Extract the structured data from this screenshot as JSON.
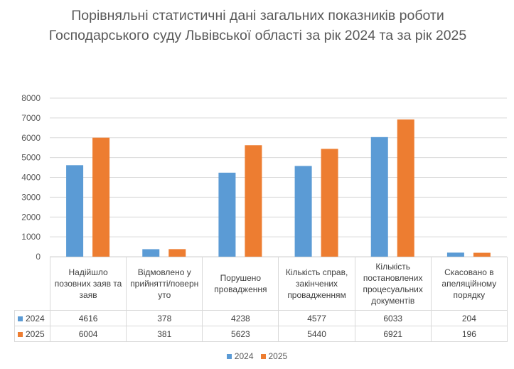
{
  "chart_data": {
    "type": "bar",
    "title": "Порівняльні статистичні дані загальних показників роботи Господарського суду Львівської області за рік 2024 та за рік 2025",
    "categories": [
      "Надійшло позовних заяв та заяв",
      "Відмовлено у прийнятті/поверн уто",
      "Порушено провадження",
      "Кількість справ, закінчених провадженням",
      "Кількість постановлених процесуальних документів",
      "Скасовано в апеляційному порядку"
    ],
    "series": [
      {
        "name": "2024",
        "color": "#5b9bd5",
        "values": [
          4616,
          378,
          4238,
          4577,
          6033,
          204
        ]
      },
      {
        "name": "2025",
        "color": "#ed7d31",
        "values": [
          6004,
          381,
          5623,
          5440,
          6921,
          196
        ]
      }
    ],
    "ylim": [
      0,
      8000
    ],
    "yticks": [
      0,
      1000,
      2000,
      3000,
      4000,
      5000,
      6000,
      7000,
      8000
    ],
    "grid": true,
    "legend": "bottom",
    "data_table": true
  }
}
